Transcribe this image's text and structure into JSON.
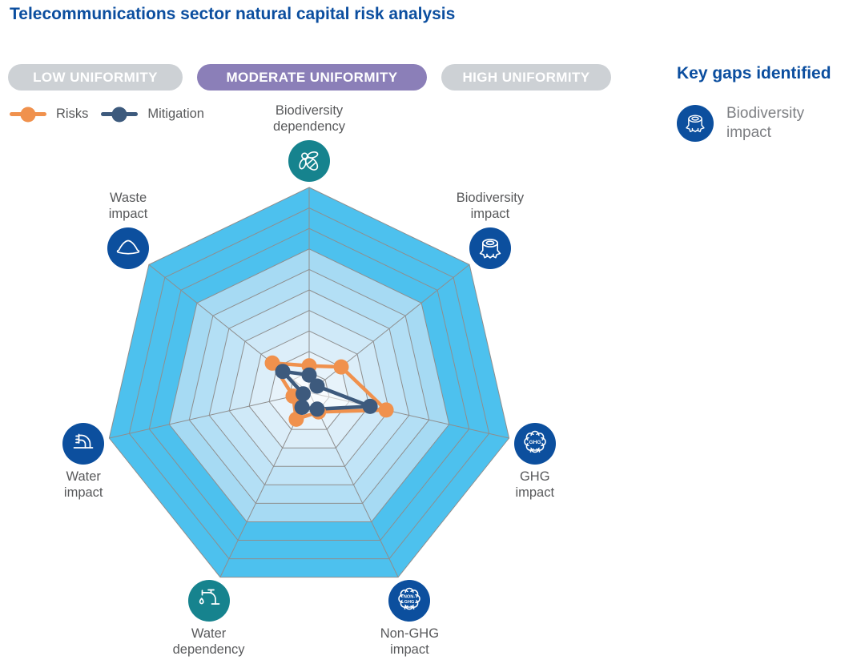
{
  "page": {
    "title": "Telecommunications sector natural capital risk analysis"
  },
  "tabs": {
    "items": [
      {
        "label": "LOW UNIFORMITY",
        "active": false
      },
      {
        "label": "MODERATE UNIFORMITY",
        "active": true
      },
      {
        "label": "HIGH UNIFORMITY",
        "active": false
      }
    ]
  },
  "legend": {
    "items": [
      {
        "label": "Risks",
        "color": "#f0914d"
      },
      {
        "label": "Mitigation",
        "color": "#3d5a7d"
      }
    ]
  },
  "key_gaps": {
    "heading": "Key gaps identified",
    "items": [
      {
        "label": "Biodiversity impact",
        "icon": "tree-stump-icon",
        "color": "#0c4f9e"
      }
    ]
  },
  "colors": {
    "title_blue": "#0b4e9f",
    "tab_active_bg": "#8b7fb8",
    "tab_inactive_bg": "#cdd1d5",
    "tab_text": "#ffffff",
    "label_gray": "#58595b",
    "panel_label_gray": "#7d7f83",
    "icon_blue": "#0c4f9e",
    "icon_teal": "#16838e",
    "background": "#ffffff"
  },
  "chart_data": {
    "type": "radar",
    "title": "Telecommunications sector natural capital risk analysis",
    "rings": 10,
    "scale_max": 10,
    "grid_color": "#8e8e8e",
    "ring_colors": [
      "#4dc1ee",
      "#4dc1ee",
      "#4dc1ee",
      "#a6daf3",
      "#b3dff5",
      "#c1e4f7",
      "#cfe9f8",
      "#dceef9",
      "#e7f3fb",
      "#f1f8fd"
    ],
    "categories": [
      "Biodiversity dependency",
      "Biodiversity impact",
      "GHG impact",
      "Non-GHG impact",
      "Water dependency",
      "Water impact",
      "Waste impact"
    ],
    "category_icons": [
      "bee-icon",
      "tree-stump-icon",
      "ghg-cloud-icon",
      "non-ghg-cloud-icon",
      "faucet-icon",
      "water-discharge-icon",
      "waste-pile-icon"
    ],
    "category_icon_colors": [
      "#16838e",
      "#0c4f9e",
      "#0c4f9e",
      "#0c4f9e",
      "#16838e",
      "#0c4f9e",
      "#0c4f9e"
    ],
    "series": [
      {
        "name": "Risks",
        "color": "#f0914d",
        "values": [
          1.3,
          2.0,
          3.85,
          1.05,
          1.45,
          0.8,
          2.3
        ]
      },
      {
        "name": "Mitigation",
        "color": "#3d5a7d",
        "values": [
          0.85,
          0.5,
          3.05,
          0.9,
          0.8,
          0.3,
          1.65
        ]
      }
    ],
    "legend_position": "top-left"
  }
}
